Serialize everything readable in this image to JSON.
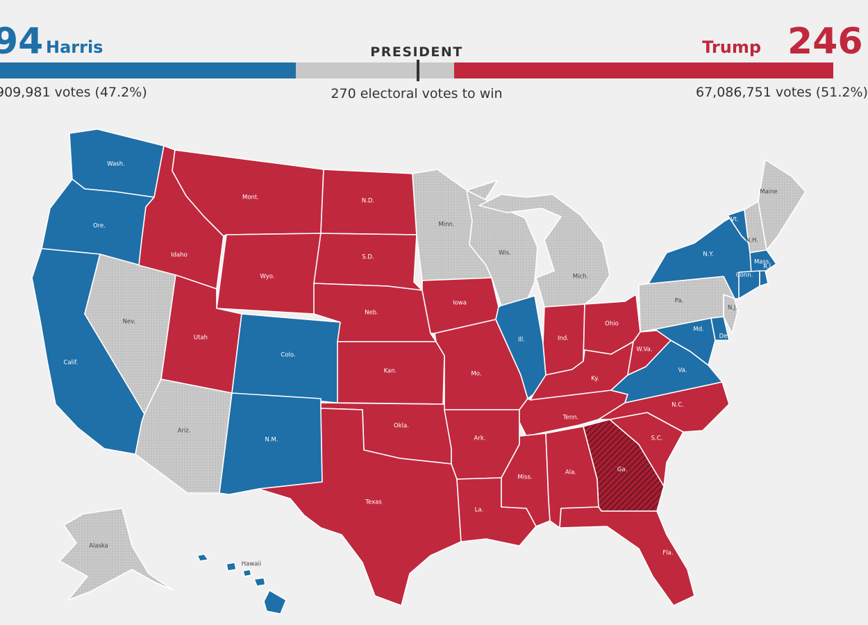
{
  "header": {
    "harris": {
      "ev": "94",
      "name": "Harris",
      "votes": "909,981 votes (47.2%)"
    },
    "trump": {
      "ev": "246",
      "name": "Trump",
      "votes": "67,086,751 votes (51.2%)"
    },
    "title": "PRESIDENT",
    "subtitle": "270 electoral votes to win"
  },
  "colors": {
    "harris": "#1f6fa8",
    "trump": "#c0283d",
    "uncalled": "#c9c9c9",
    "background": "#f0f0f0"
  },
  "states": [
    {
      "id": "wa",
      "label": "Wash.",
      "status": "harris"
    },
    {
      "id": "or",
      "label": "Ore.",
      "status": "harris"
    },
    {
      "id": "ca",
      "label": "Calif.",
      "status": "harris"
    },
    {
      "id": "nv",
      "label": "Nev.",
      "status": "uncalled"
    },
    {
      "id": "id",
      "label": "Idaho",
      "status": "trump"
    },
    {
      "id": "mt",
      "label": "Mont.",
      "status": "trump"
    },
    {
      "id": "wy",
      "label": "Wyo.",
      "status": "trump"
    },
    {
      "id": "ut",
      "label": "Utah",
      "status": "trump"
    },
    {
      "id": "az",
      "label": "Ariz.",
      "status": "uncalled"
    },
    {
      "id": "co",
      "label": "Colo.",
      "status": "harris"
    },
    {
      "id": "nm",
      "label": "N.M.",
      "status": "harris"
    },
    {
      "id": "nd",
      "label": "N.D.",
      "status": "trump"
    },
    {
      "id": "sd",
      "label": "S.D.",
      "status": "trump"
    },
    {
      "id": "ne",
      "label": "Neb.",
      "status": "trump"
    },
    {
      "id": "ks",
      "label": "Kan.",
      "status": "trump"
    },
    {
      "id": "ok",
      "label": "Okla.",
      "status": "trump"
    },
    {
      "id": "tx",
      "label": "Texas",
      "status": "trump"
    },
    {
      "id": "mn",
      "label": "Minn.",
      "status": "uncalled"
    },
    {
      "id": "ia",
      "label": "Iowa",
      "status": "trump"
    },
    {
      "id": "mo",
      "label": "Mo.",
      "status": "trump"
    },
    {
      "id": "ar",
      "label": "Ark.",
      "status": "trump"
    },
    {
      "id": "la",
      "label": "La.",
      "status": "trump"
    },
    {
      "id": "wi",
      "label": "Wis.",
      "status": "uncalled"
    },
    {
      "id": "il",
      "label": "Ill.",
      "status": "harris"
    },
    {
      "id": "mi",
      "label": "Mich.",
      "status": "uncalled"
    },
    {
      "id": "in",
      "label": "Ind.",
      "status": "trump"
    },
    {
      "id": "oh",
      "label": "Ohio",
      "status": "trump"
    },
    {
      "id": "ky",
      "label": "Ky.",
      "status": "trump"
    },
    {
      "id": "tn",
      "label": "Tenn.",
      "status": "trump"
    },
    {
      "id": "ms",
      "label": "Miss.",
      "status": "trump"
    },
    {
      "id": "al",
      "label": "Ala.",
      "status": "trump"
    },
    {
      "id": "ga",
      "label": "Ga.",
      "status": "trump-leading"
    },
    {
      "id": "fl",
      "label": "Fla.",
      "status": "trump"
    },
    {
      "id": "sc",
      "label": "S.C.",
      "status": "trump"
    },
    {
      "id": "nc",
      "label": "N.C.",
      "status": "trump"
    },
    {
      "id": "va",
      "label": "Va.",
      "status": "harris"
    },
    {
      "id": "wv",
      "label": "W.Va.",
      "status": "trump"
    },
    {
      "id": "md",
      "label": "Md.",
      "status": "harris"
    },
    {
      "id": "de",
      "label": "Del.",
      "status": "harris"
    },
    {
      "id": "nj",
      "label": "N.J.",
      "status": "uncalled"
    },
    {
      "id": "pa",
      "label": "Pa.",
      "status": "uncalled"
    },
    {
      "id": "ny",
      "label": "N.Y.",
      "status": "harris"
    },
    {
      "id": "vt",
      "label": "Vt.",
      "status": "harris"
    },
    {
      "id": "nh",
      "label": "N.H.",
      "status": "uncalled"
    },
    {
      "id": "me",
      "label": "Maine",
      "status": "uncalled"
    },
    {
      "id": "ma",
      "label": "Mass.",
      "status": "harris"
    },
    {
      "id": "ct",
      "label": "Conn.",
      "status": "harris"
    },
    {
      "id": "ri",
      "label": "R.I.",
      "status": "harris"
    },
    {
      "id": "ak",
      "label": "Alaska",
      "status": "uncalled"
    },
    {
      "id": "hi",
      "label": "Hawaii",
      "status": "harris"
    }
  ]
}
